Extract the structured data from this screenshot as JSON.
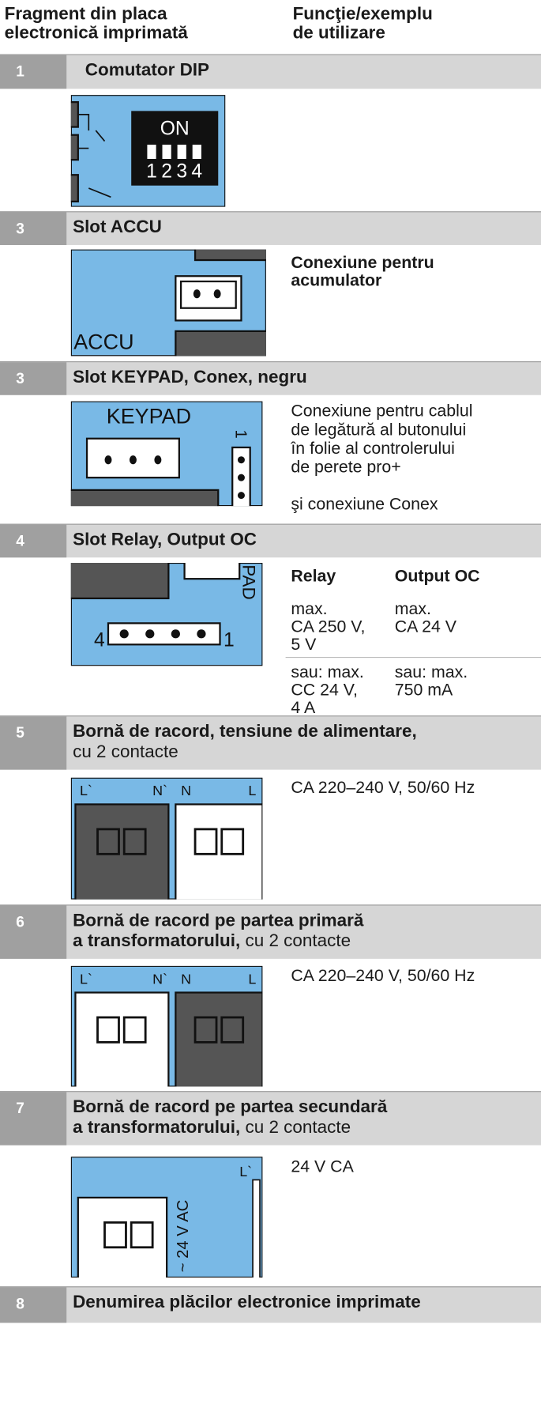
{
  "header": {
    "col1": [
      "Fragment din placa",
      "electronică imprimată"
    ],
    "col2": [
      "Funcţie/exemplu",
      "de utilizare"
    ]
  },
  "rows": [
    {
      "number": "1",
      "title": "Comutator DIP",
      "figure": {
        "labels": [
          "ON",
          "1",
          "2",
          "3",
          "4"
        ]
      }
    },
    {
      "number": "3",
      "title": "Slot ACCU",
      "figure": {
        "labels": [
          "ACCU"
        ]
      },
      "description": [
        "Conexiune pentru",
        "acumulator"
      ]
    },
    {
      "number": "3",
      "title": "Slot KEYPAD, Conex, negru",
      "figure": {
        "labels": [
          "KEYPAD",
          "1"
        ]
      },
      "description": [
        "Conexiune pentru cablul",
        "de legătură al butonului",
        "în folie al controlerului",
        "de perete pro+"
      ],
      "description2": "şi conexiune Conex"
    },
    {
      "number": "4",
      "title": "Slot Relay, Output OC",
      "figure": {
        "labels": [
          "PAD",
          "4",
          "1"
        ]
      },
      "columns": [
        {
          "heading": "Relay",
          "lines": [
            "max.",
            "CA 250 V,",
            "5 V"
          ],
          "lines2": [
            "sau: max.",
            "CC 24 V,",
            "4 A"
          ]
        },
        {
          "heading": "Output OC",
          "lines": [
            "max.",
            "CA 24 V"
          ],
          "lines2": [
            "sau: max.",
            "750 mA"
          ]
        }
      ]
    },
    {
      "number": "5",
      "title": [
        "Bornă de racord, tensiune de alimentare,"
      ],
      "title_suffix": "cu 2 contacte",
      "figure": {
        "labels": [
          "L`",
          "N`",
          "N",
          "L"
        ]
      },
      "description": "CA 220–240 V, 50/60 Hz"
    },
    {
      "number": "6",
      "title": [
        "Bornă de racord pe partea primară",
        "a transformatorului,"
      ],
      "title_suffix": "cu 2 contacte",
      "figure": {
        "labels": [
          "L`",
          "N`",
          "N",
          "L"
        ]
      },
      "description": "CA 220–240 V, 50/60 Hz"
    },
    {
      "number": "7",
      "title": [
        "Bornă de racord pe partea secundară",
        "a transformatorului,"
      ],
      "title_suffix": "cu 2 contacte",
      "figure": {
        "labels": [
          "L`",
          "~ 24 V AC"
        ]
      },
      "description": "24 V CA"
    },
    {
      "number": "8",
      "title": "Denumirea plăcilor electronice imprimate"
    }
  ]
}
